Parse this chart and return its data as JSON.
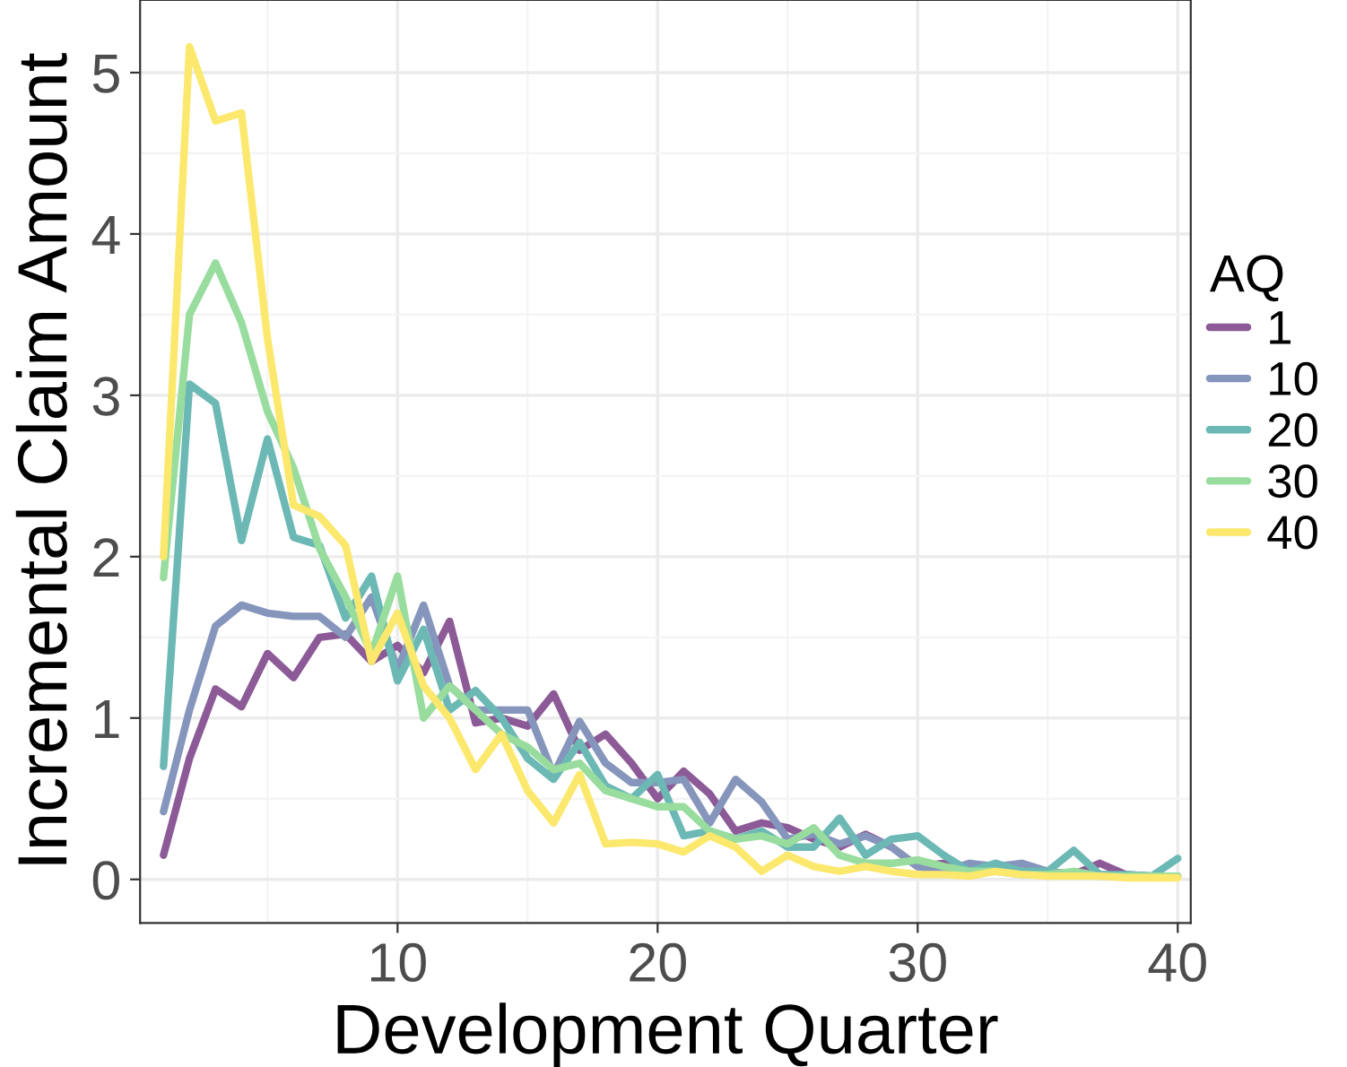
{
  "chart_data": {
    "type": "line",
    "xlabel": "Development Quarter",
    "ylabel": "Incremental Claim Amount",
    "legend_title": "AQ",
    "legend": "right",
    "grid": true,
    "line_style": "solid",
    "marker": "none",
    "x": [
      1,
      2,
      3,
      4,
      5,
      6,
      7,
      8,
      9,
      10,
      11,
      12,
      13,
      14,
      15,
      16,
      17,
      18,
      19,
      20,
      21,
      22,
      23,
      24,
      25,
      26,
      27,
      28,
      29,
      30,
      31,
      32,
      33,
      34,
      35,
      36,
      37,
      38,
      39,
      40
    ],
    "xlim": [
      0.1,
      40.5
    ],
    "xticks": [
      10,
      20,
      30,
      40
    ],
    "ylim": [
      -0.27,
      5.45
    ],
    "yticks": [
      0,
      1,
      2,
      3,
      4,
      5
    ],
    "series": [
      {
        "name": "1",
        "color": "#8c5a96",
        "values": [
          0.15,
          0.75,
          1.18,
          1.07,
          1.4,
          1.25,
          1.5,
          1.52,
          1.35,
          1.45,
          1.28,
          1.6,
          0.97,
          1.0,
          0.95,
          1.15,
          0.8,
          0.9,
          0.72,
          0.5,
          0.67,
          0.53,
          0.3,
          0.35,
          0.32,
          0.25,
          0.2,
          0.28,
          0.2,
          0.08,
          0.1,
          0.08,
          0.06,
          0.05,
          0.05,
          0.03,
          0.1,
          0.03,
          0.02,
          null
        ]
      },
      {
        "name": "10",
        "color": "#8595bb",
        "values": [
          0.42,
          1.05,
          1.57,
          1.7,
          1.65,
          1.63,
          1.63,
          1.5,
          1.75,
          1.3,
          1.7,
          1.2,
          1.05,
          1.05,
          1.05,
          0.65,
          0.98,
          0.72,
          0.6,
          0.6,
          0.62,
          0.35,
          0.62,
          0.48,
          0.25,
          0.28,
          0.22,
          0.27,
          0.2,
          0.08,
          0.05,
          0.1,
          0.08,
          0.1,
          0.05,
          0.03,
          0.03,
          0.02,
          0.02,
          0.02
        ]
      },
      {
        "name": "20",
        "color": "#6bb8b5",
        "values": [
          0.7,
          3.07,
          2.95,
          2.1,
          2.73,
          2.12,
          2.07,
          1.62,
          1.88,
          1.23,
          1.55,
          1.05,
          1.17,
          1.0,
          0.75,
          0.62,
          0.85,
          0.58,
          0.5,
          0.65,
          0.27,
          0.3,
          0.25,
          0.3,
          0.2,
          0.2,
          0.38,
          0.15,
          0.25,
          0.27,
          0.15,
          0.05,
          0.1,
          0.05,
          0.05,
          0.18,
          0.03,
          0.03,
          0.02,
          0.13
        ]
      },
      {
        "name": "30",
        "color": "#98dc9e",
        "values": [
          1.87,
          3.5,
          3.82,
          3.45,
          2.9,
          2.55,
          2.05,
          1.75,
          1.4,
          1.88,
          1.0,
          1.2,
          1.05,
          0.9,
          0.82,
          0.68,
          0.72,
          0.55,
          0.5,
          0.45,
          0.45,
          0.3,
          0.25,
          0.27,
          0.22,
          0.32,
          0.15,
          0.1,
          0.1,
          0.12,
          0.08,
          0.05,
          0.05,
          0.03,
          0.03,
          0.05,
          0.02,
          0.02,
          0.02,
          0.02
        ]
      },
      {
        "name": "40",
        "color": "#fbe86c",
        "values": [
          2.0,
          5.16,
          4.7,
          4.75,
          3.35,
          2.32,
          2.25,
          2.07,
          1.35,
          1.65,
          1.2,
          1.0,
          0.68,
          0.9,
          0.55,
          0.35,
          0.65,
          0.22,
          0.23,
          0.22,
          0.17,
          0.27,
          0.2,
          0.05,
          0.15,
          0.08,
          0.05,
          0.08,
          0.05,
          0.03,
          0.03,
          0.02,
          0.05,
          0.03,
          0.02,
          0.02,
          0.02,
          0.01,
          0.01,
          0.01
        ]
      }
    ]
  }
}
